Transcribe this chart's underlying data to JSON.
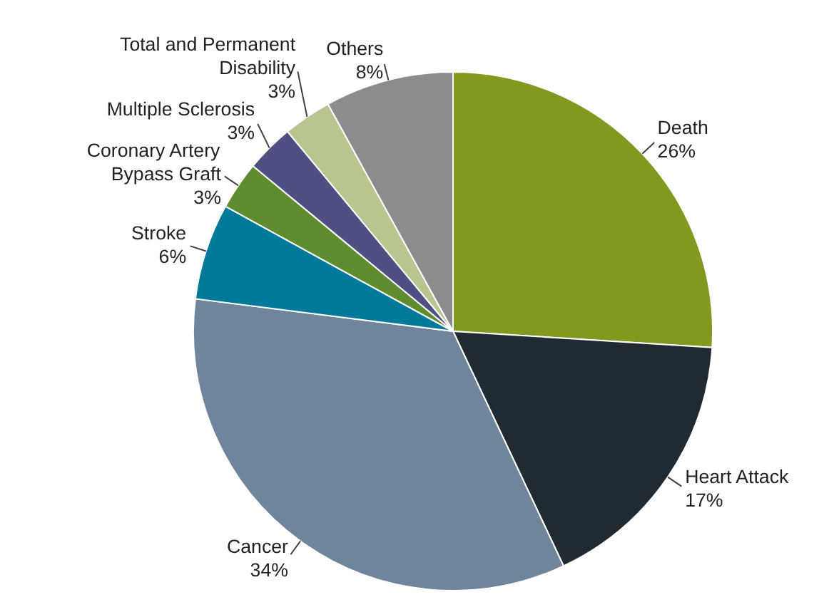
{
  "chart_data": {
    "type": "pie",
    "categories": [
      "Death",
      "Heart Attack",
      "Cancer",
      "Stroke",
      "Coronary Artery Bypass Graft",
      "Multiple Sclerosis",
      "Total and Permanent Disability",
      "Others"
    ],
    "values": [
      26,
      17,
      34,
      6,
      3,
      3,
      3,
      8
    ],
    "value_labels": [
      "26%",
      "17%",
      "34%",
      "6%",
      "3%",
      "3%",
      "3%",
      "8%"
    ],
    "colors": [
      "#7f9a1e",
      "#1f2a33",
      "#6e859b",
      "#007a9a",
      "#5f8c2f",
      "#4d5080",
      "#b8c58e",
      "#8a8c8e"
    ],
    "legend": false
  }
}
